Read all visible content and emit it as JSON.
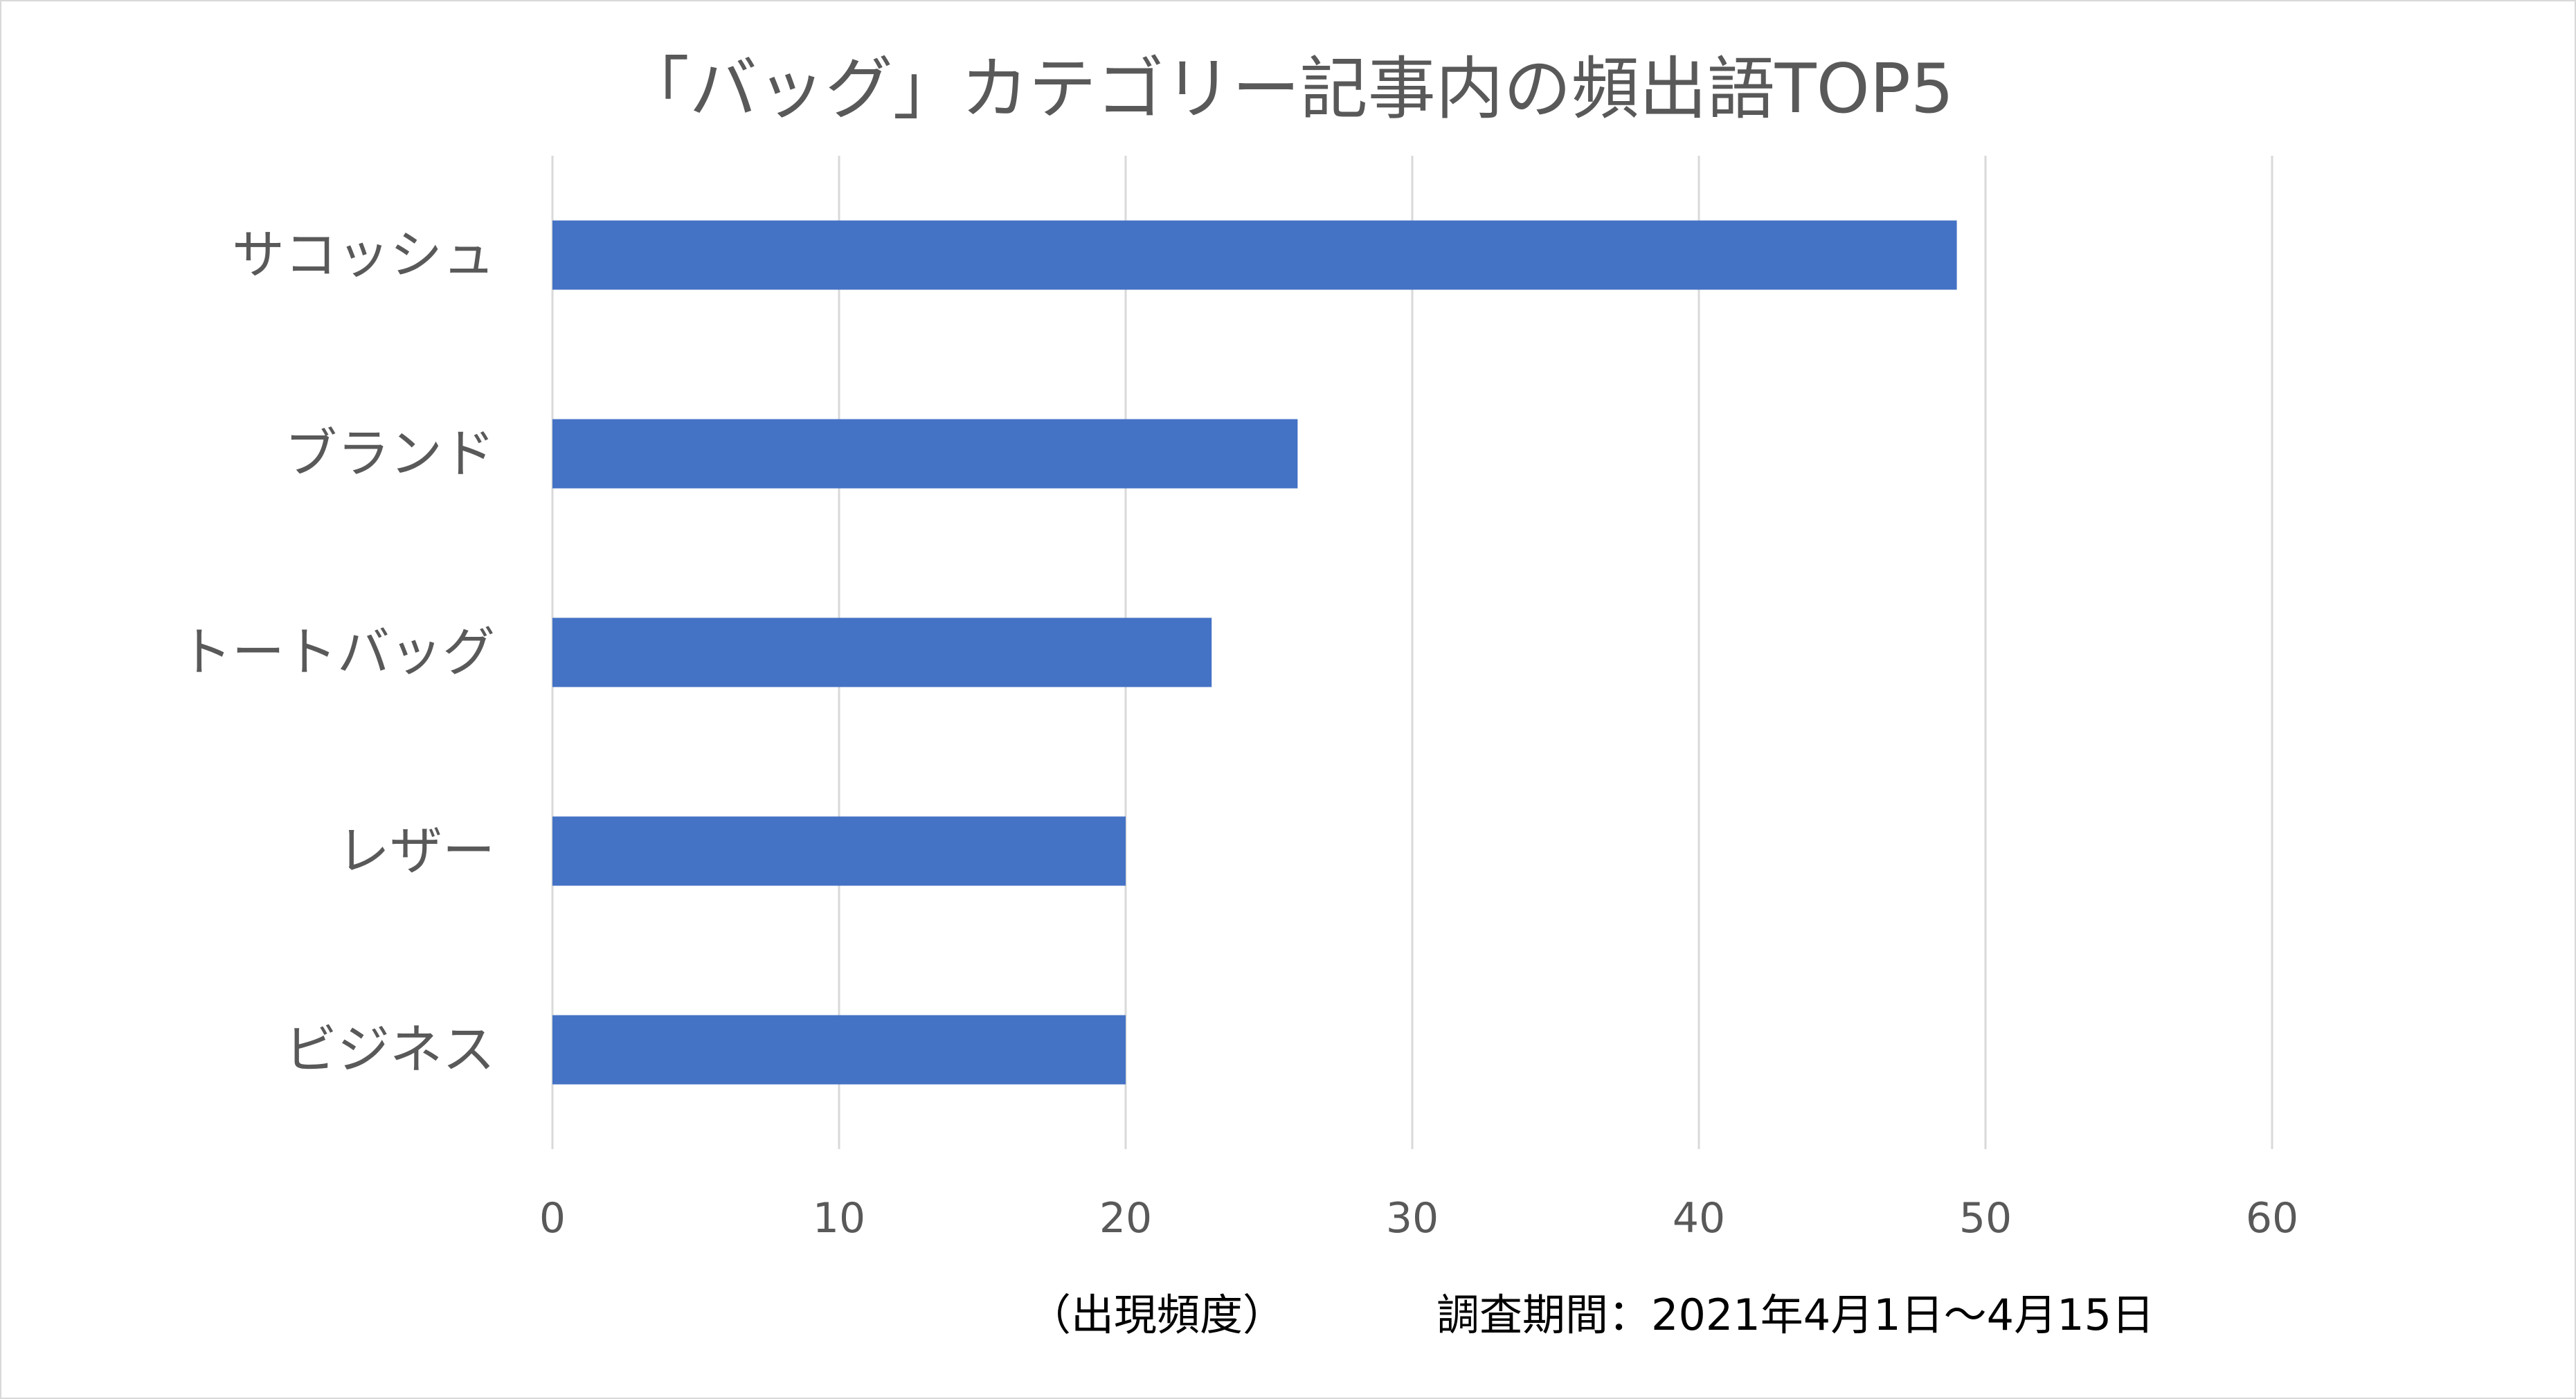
{
  "chart_data": {
    "type": "bar",
    "orientation": "horizontal",
    "title": "「バッグ」カテゴリー記事内の頻出語TOP5",
    "categories": [
      "サコッシュ",
      "ブランド",
      "トートバッグ",
      "レザー",
      "ビジネス"
    ],
    "values": [
      49,
      26,
      23,
      20,
      20
    ],
    "xlabel": "（出現頻度）",
    "ylabel": "",
    "xlim": [
      0,
      60
    ],
    "x_ticks": [
      0,
      10,
      20,
      30,
      40,
      50,
      60
    ],
    "x_tick_labels": [
      "0",
      "10",
      "20",
      "30",
      "40",
      "50",
      "60"
    ],
    "grid": "vertical gridlines",
    "legend": "none",
    "annotation": "調査期間：2021年4月1日〜4月15日",
    "colors": {
      "bar": "#4472c4",
      "grid": "#d9d9d9",
      "text": "#595959"
    }
  }
}
